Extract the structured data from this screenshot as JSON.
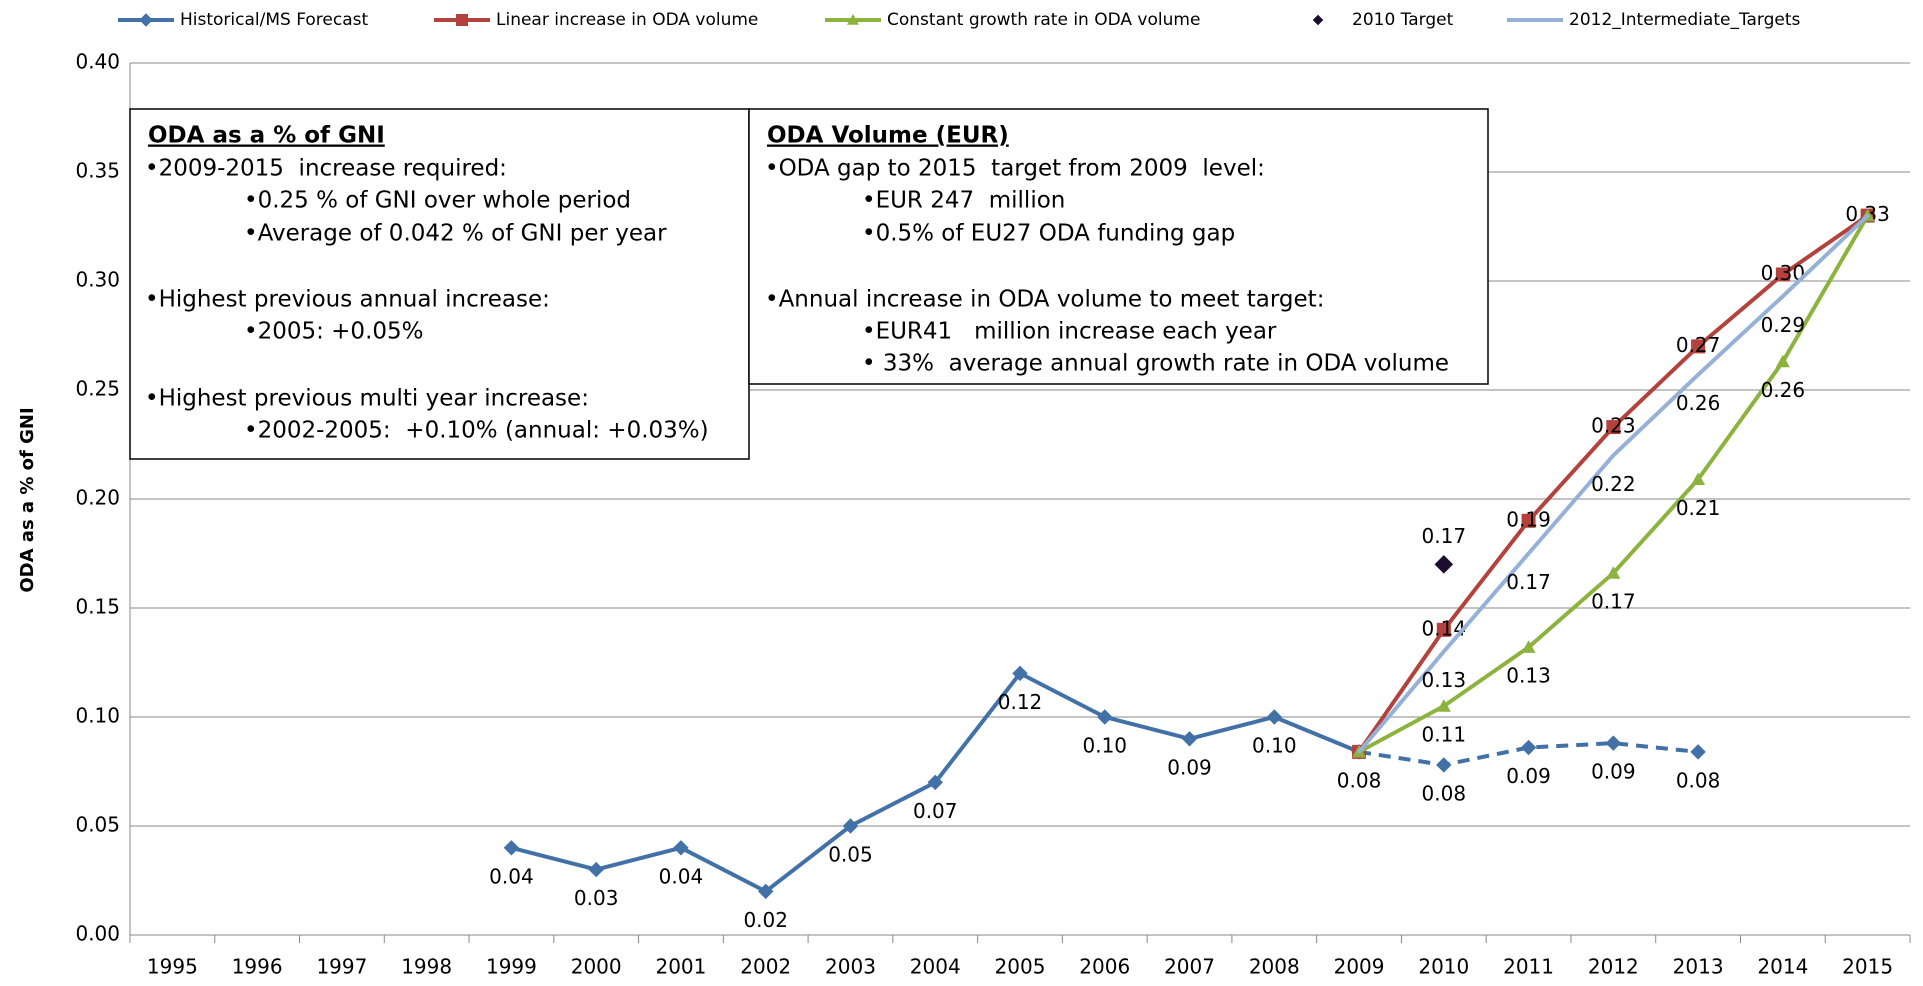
{
  "chart_data": {
    "type": "line",
    "y_label": "ODA as a % of GNI",
    "categories": [
      "1995",
      "1996",
      "1997",
      "1998",
      "1999",
      "2000",
      "2001",
      "2002",
      "2003",
      "2004",
      "2005",
      "2006",
      "2007",
      "2008",
      "2009",
      "2010",
      "2011",
      "2012",
      "2013",
      "2014",
      "2015"
    ],
    "ylim": [
      0,
      0.4
    ],
    "yticks": [
      {
        "value": 0,
        "label": "0.00"
      },
      0.05,
      {
        "value": 0.1,
        "label": "0.10"
      },
      0.15,
      {
        "value": 0.2,
        "label": "0.20"
      },
      0.25,
      {
        "value": 0.3,
        "label": "0.30"
      },
      0.35,
      {
        "value": 0.4,
        "label": "0.40"
      }
    ],
    "grid": true,
    "legend": "top",
    "series": [
      {
        "name": "Historical/MS Forecast",
        "color": "#4271a8",
        "marker": "diamond",
        "line": true,
        "dashed_from": "2009",
        "label_position": "below",
        "values": [
          null,
          null,
          null,
          null,
          0.04,
          0.03,
          0.04,
          0.02,
          0.05,
          0.07,
          0.12,
          0.1,
          0.09,
          0.1,
          0.084,
          0.078,
          0.086,
          0.088,
          0.084,
          null,
          null
        ],
        "value_labels": [
          null,
          null,
          null,
          null,
          "0.04",
          "0.03",
          "0.04",
          "0.02",
          "0.05",
          "0.07",
          "0.12",
          "0.10",
          "0.09",
          "0.10",
          "0.08",
          "0.08",
          "0.09",
          "0.09",
          "0.08",
          null,
          null
        ]
      },
      {
        "name": "Linear increase in ODA volume",
        "color": "#b3423c",
        "marker": "square",
        "line": true,
        "label_position": "center",
        "values": [
          null,
          null,
          null,
          null,
          null,
          null,
          null,
          null,
          null,
          null,
          null,
          null,
          null,
          null,
          0.084,
          0.14,
          0.19,
          0.233,
          0.27,
          0.303,
          0.33
        ],
        "value_labels": [
          null,
          null,
          null,
          null,
          null,
          null,
          null,
          null,
          null,
          null,
          null,
          null,
          null,
          null,
          null,
          "0.14",
          "0.19",
          "0.23",
          "0.27",
          "0.30",
          "0.33"
        ]
      },
      {
        "name": "Constant growth rate in ODA volume",
        "color": "#8db33f",
        "marker": "triangle",
        "line": true,
        "label_position": "below",
        "values": [
          null,
          null,
          null,
          null,
          null,
          null,
          null,
          null,
          null,
          null,
          null,
          null,
          null,
          null,
          0.084,
          0.105,
          0.132,
          0.166,
          0.209,
          0.263,
          0.33
        ],
        "value_labels": [
          null,
          null,
          null,
          null,
          null,
          null,
          null,
          null,
          null,
          null,
          null,
          null,
          null,
          null,
          null,
          "0.11",
          "0.13",
          "0.17",
          "0.21",
          "0.26",
          null
        ]
      },
      {
        "name": "2010 Target",
        "color": "#1c0d2e",
        "marker": "diamond",
        "line": false,
        "label_position": "above",
        "values": [
          null,
          null,
          null,
          null,
          null,
          null,
          null,
          null,
          null,
          null,
          null,
          null,
          null,
          null,
          null,
          0.17,
          null,
          null,
          null,
          null,
          null
        ],
        "value_labels": [
          null,
          null,
          null,
          null,
          null,
          null,
          null,
          null,
          null,
          null,
          null,
          null,
          null,
          null,
          null,
          "0.17",
          null,
          null,
          null,
          null,
          null
        ]
      },
      {
        "name": "2012_Intermediate_Targets",
        "color": "#95b1d8",
        "marker": null,
        "line": true,
        "label_position": "below",
        "values": [
          null,
          null,
          null,
          null,
          null,
          null,
          null,
          null,
          null,
          null,
          null,
          null,
          null,
          null,
          0.084,
          0.13,
          0.175,
          0.22,
          0.257,
          0.293,
          0.33
        ],
        "value_labels": [
          null,
          null,
          null,
          null,
          null,
          null,
          null,
          null,
          null,
          null,
          null,
          null,
          null,
          null,
          null,
          "0.13",
          "0.17",
          "0.22",
          "0.26",
          "0.29",
          null
        ]
      }
    ],
    "text_boxes": [
      {
        "heading": "ODA as a % of GNI",
        "lines": [
          "•2009-2015  increase required:",
          "•0.25 % of GNI over whole period",
          "•Average of 0.042 % of GNI per year",
          "•Highest previous annual increase:",
          "•2005: +0.05%",
          "•Highest previous multi year increase:",
          "•2002-2005:  +0.10% (annual: +0.03%)"
        ]
      },
      {
        "heading": "ODA Volume (EUR)",
        "lines": [
          "•ODA gap to 2015  target from 2009  level:",
          "•EUR 247  million",
          "•0.5% of EU27 ODA funding gap",
          "•Annual increase in ODA volume to meet target:",
          "•EUR41   million increase each year",
          "• 33%  average annual growth rate in ODA volume"
        ]
      }
    ]
  }
}
